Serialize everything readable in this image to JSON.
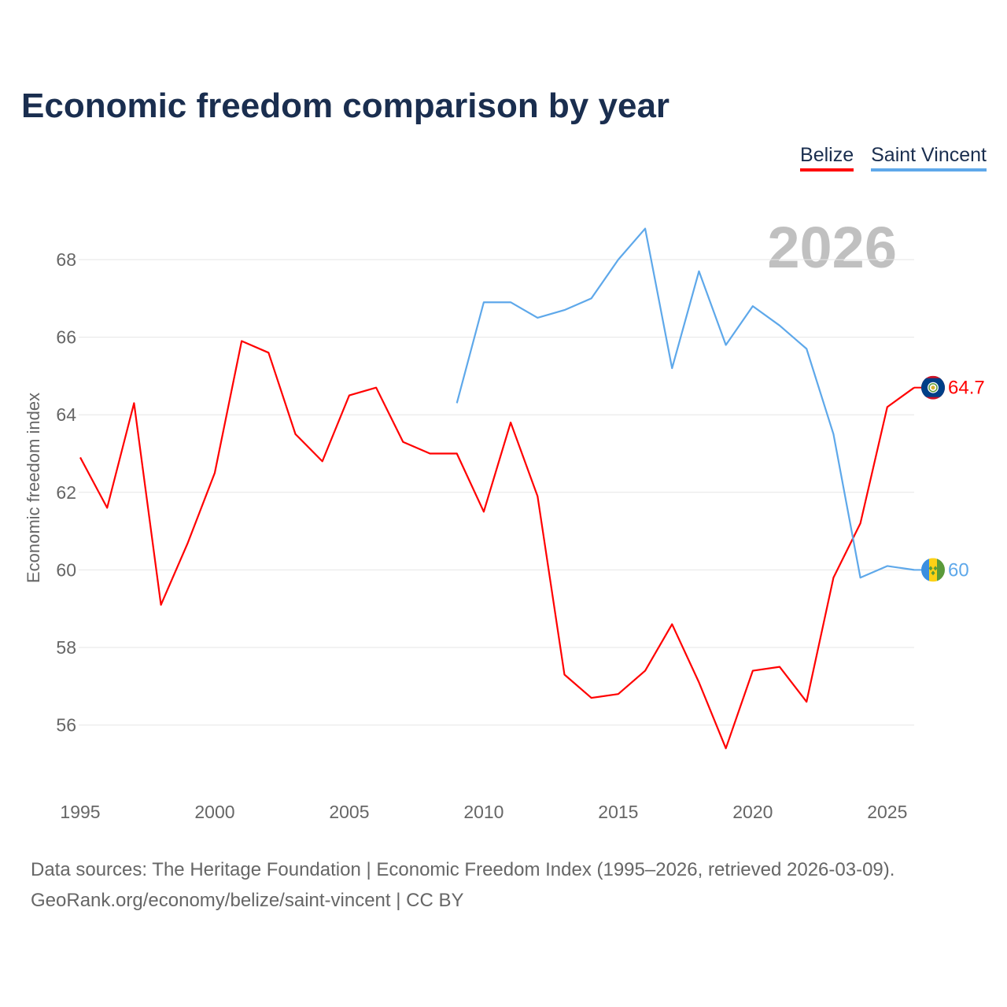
{
  "chart_data": {
    "type": "line",
    "title": "Economic freedom comparison by year",
    "xlabel": "",
    "ylabel": "Economic freedom index",
    "xlim": [
      1995,
      2026
    ],
    "ylim": [
      54.5,
      69.5
    ],
    "x_ticks": [
      1995,
      2000,
      2005,
      2010,
      2015,
      2020,
      2025
    ],
    "y_ticks": [
      56,
      58,
      60,
      62,
      64,
      66,
      68
    ],
    "grid": true,
    "legend_placement": "top-right",
    "year_watermark": "2026",
    "series": [
      {
        "name": "Belize",
        "color": "#ff0000",
        "end_label": "64.7",
        "flag": "belize-flag",
        "x": [
          1995,
          1996,
          1997,
          1998,
          1999,
          2000,
          2001,
          2002,
          2003,
          2004,
          2005,
          2006,
          2007,
          2008,
          2009,
          2010,
          2011,
          2012,
          2013,
          2014,
          2015,
          2016,
          2017,
          2018,
          2019,
          2020,
          2021,
          2022,
          2023,
          2024,
          2025,
          2026
        ],
        "values": [
          62.9,
          61.6,
          64.3,
          59.1,
          60.7,
          62.5,
          65.9,
          65.6,
          63.5,
          62.8,
          64.5,
          64.7,
          63.3,
          63.0,
          63.0,
          61.5,
          63.8,
          61.9,
          57.3,
          56.7,
          56.8,
          57.4,
          58.6,
          57.1,
          55.4,
          57.4,
          57.5,
          56.6,
          59.8,
          61.2,
          64.2,
          64.7
        ]
      },
      {
        "name": "Saint Vincent",
        "color": "#5ea8ea",
        "end_label": "60",
        "flag": "saint-vincent-flag",
        "x": [
          2009,
          2010,
          2011,
          2012,
          2013,
          2014,
          2015,
          2016,
          2017,
          2018,
          2019,
          2020,
          2021,
          2022,
          2023,
          2024,
          2025,
          2026
        ],
        "values": [
          64.3,
          66.9,
          66.9,
          66.5,
          66.7,
          67.0,
          68.0,
          68.8,
          65.2,
          67.7,
          65.8,
          66.8,
          66.3,
          65.7,
          63.5,
          59.8,
          60.1,
          60.0
        ]
      }
    ]
  },
  "footer": {
    "line1": "Data sources: The Heritage Foundation | Economic Freedom Index (1995–2026, retrieved 2026-03-09).",
    "line2": "GeoRank.org/economy/belize/saint-vincent | CC BY"
  }
}
